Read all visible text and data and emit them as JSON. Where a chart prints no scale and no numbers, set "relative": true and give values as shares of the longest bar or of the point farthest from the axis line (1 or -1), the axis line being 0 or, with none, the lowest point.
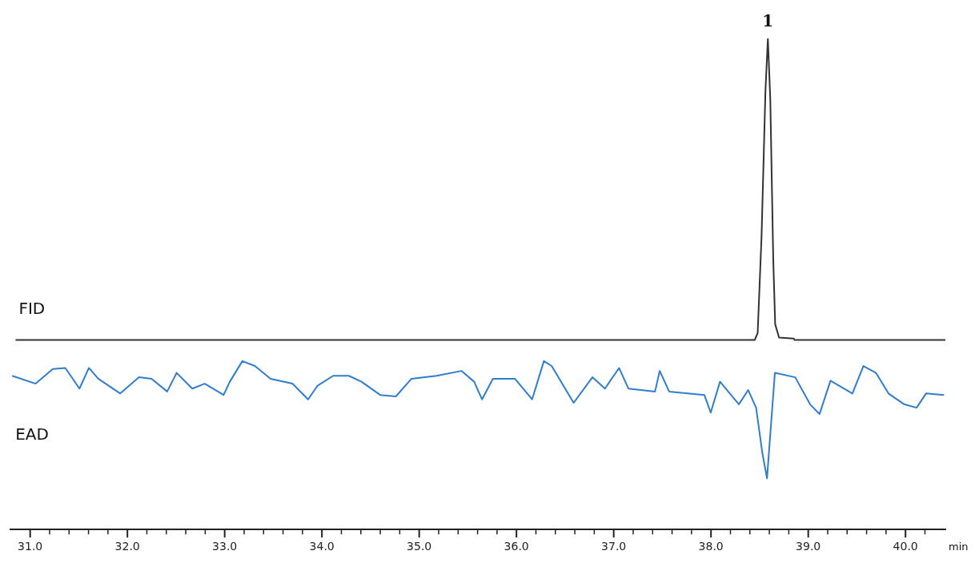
{
  "chart_data": {
    "type": "line",
    "relative": true,
    "xlabel": "min",
    "xlim": [
      30.8,
      40.41
    ],
    "xticks": [
      {
        "value": 31,
        "label": "31.0"
      },
      {
        "value": 31.2,
        "label": null
      },
      {
        "value": 31.4,
        "label": null
      },
      {
        "value": 31.6,
        "label": null
      },
      {
        "value": 31.8,
        "label": null
      },
      {
        "value": 32,
        "label": "32.0"
      },
      {
        "value": 32.2,
        "label": null
      },
      {
        "value": 32.4,
        "label": null
      },
      {
        "value": 32.6,
        "label": null
      },
      {
        "value": 32.8,
        "label": null
      },
      {
        "value": 33,
        "label": "33.0"
      },
      {
        "value": 33.2,
        "label": null
      },
      {
        "value": 33.4,
        "label": null
      },
      {
        "value": 33.6,
        "label": null
      },
      {
        "value": 33.8,
        "label": null
      },
      {
        "value": 34,
        "label": "34.0"
      },
      {
        "value": 34.2,
        "label": null
      },
      {
        "value": 34.4,
        "label": null
      },
      {
        "value": 34.6,
        "label": null
      },
      {
        "value": 34.8,
        "label": null
      },
      {
        "value": 35,
        "label": "35.0"
      },
      {
        "value": 35.2,
        "label": null
      },
      {
        "value": 35.4,
        "label": null
      },
      {
        "value": 35.6,
        "label": null
      },
      {
        "value": 35.8,
        "label": null
      },
      {
        "value": 36,
        "label": "36.0"
      },
      {
        "value": 36.2,
        "label": null
      },
      {
        "value": 36.4,
        "label": null
      },
      {
        "value": 36.6,
        "label": null
      },
      {
        "value": 36.8,
        "label": null
      },
      {
        "value": 37,
        "label": "37.0"
      },
      {
        "value": 37.2,
        "label": null
      },
      {
        "value": 37.4,
        "label": null
      },
      {
        "value": 37.6,
        "label": null
      },
      {
        "value": 37.8,
        "label": null
      },
      {
        "value": 38,
        "label": "38.0"
      },
      {
        "value": 38.2,
        "label": null
      },
      {
        "value": 38.4,
        "label": null
      },
      {
        "value": 38.6,
        "label": null
      },
      {
        "value": 38.8,
        "label": null
      },
      {
        "value": 39,
        "label": "39.0"
      },
      {
        "value": 39.2,
        "label": null
      },
      {
        "value": 39.4,
        "label": null
      },
      {
        "value": 39.6,
        "label": null
      },
      {
        "value": 39.8,
        "label": null
      },
      {
        "value": 40,
        "label": "40.0"
      },
      {
        "value": 40.2,
        "label": null
      }
    ],
    "tick_labels": "x",
    "grid": false,
    "legend": false,
    "marker": "none",
    "line_style": "solid",
    "annotations": [
      {
        "text": "1",
        "x": 38.585,
        "y": 1
      }
    ],
    "series": [
      {
        "name": "FID",
        "color": "#333333",
        "x": [
          30.85,
          38.45,
          38.48,
          38.52,
          38.56,
          38.585,
          38.61,
          38.64,
          38.66,
          38.7,
          38.85,
          38.86,
          40.41
        ],
        "values": [
          0.386,
          0.386,
          0.4,
          0.597,
          0.893,
          1.0,
          0.875,
          0.552,
          0.418,
          0.391,
          0.389,
          0.386,
          0.386
        ]
      },
      {
        "name": "EAD",
        "color": "#2f7dcc",
        "x": [
          30.815,
          31.056,
          31.233,
          31.362,
          31.507,
          31.604,
          31.7,
          31.926,
          32.119,
          32.248,
          32.409,
          32.506,
          32.667,
          32.795,
          32.989,
          33.053,
          33.182,
          33.311,
          33.472,
          33.697,
          33.858,
          33.955,
          34.116,
          34.277,
          34.406,
          34.599,
          34.76,
          34.921,
          35.179,
          35.436,
          35.565,
          35.646,
          35.758,
          35.984,
          36.161,
          36.282,
          36.362,
          36.588,
          36.781,
          36.91,
          37.055,
          37.151,
          37.425,
          37.473,
          37.57,
          37.932,
          37.997,
          38.093,
          38.287,
          38.383,
          38.464,
          38.528,
          38.576,
          38.657,
          38.866,
          39.019,
          39.116,
          39.229,
          39.454,
          39.567,
          39.696,
          39.825,
          39.986,
          40.114,
          40.211,
          40.396
        ],
        "values": [
          0.313,
          0.297,
          0.327,
          0.329,
          0.287,
          0.329,
          0.307,
          0.277,
          0.31,
          0.307,
          0.281,
          0.319,
          0.287,
          0.297,
          0.274,
          0.301,
          0.343,
          0.333,
          0.307,
          0.297,
          0.265,
          0.293,
          0.313,
          0.313,
          0.301,
          0.274,
          0.271,
          0.307,
          0.313,
          0.323,
          0.301,
          0.265,
          0.307,
          0.307,
          0.265,
          0.343,
          0.333,
          0.258,
          0.31,
          0.287,
          0.329,
          0.287,
          0.281,
          0.323,
          0.281,
          0.274,
          0.238,
          0.301,
          0.255,
          0.284,
          0.248,
          0.156,
          0.104,
          0.319,
          0.31,
          0.255,
          0.235,
          0.303,
          0.277,
          0.333,
          0.319,
          0.277,
          0.255,
          0.248,
          0.277,
          0.274
        ]
      }
    ]
  }
}
